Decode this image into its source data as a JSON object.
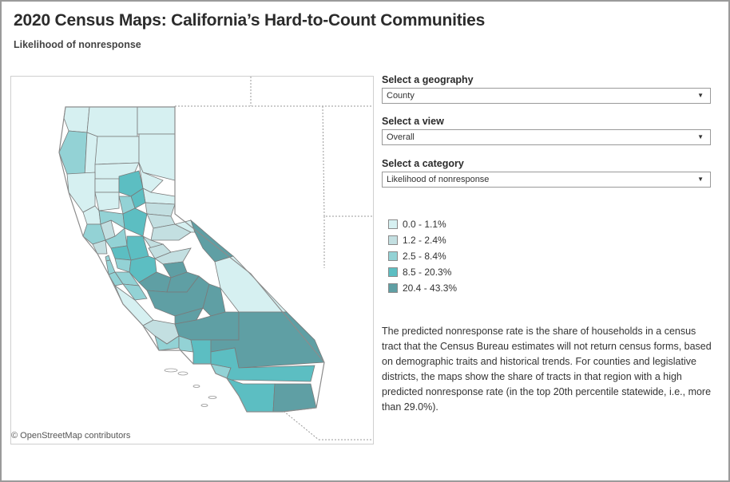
{
  "header": {
    "title": "2020 Census Maps: California’s Hard-to-Count Communities",
    "subtitle": "Likelihood of nonresponse"
  },
  "controls": [
    {
      "label": "Select a geography",
      "value": "County"
    },
    {
      "label": "Select a view",
      "value": "Overall"
    },
    {
      "label": "Select a category",
      "value": "Likelihood of nonresponse"
    }
  ],
  "legend": {
    "items": [
      {
        "label": "0.0 - 1.1%",
        "color": "#d6f0f1"
      },
      {
        "label": "1.2 - 2.4%",
        "color": "#c3dfe1"
      },
      {
        "label": "2.5 - 8.4%",
        "color": "#93d2d5"
      },
      {
        "label": "8.5 - 20.3%",
        "color": "#5cbec2"
      },
      {
        "label": "20.4 - 43.3%",
        "color": "#5f9fa4"
      }
    ]
  },
  "description": "The predicted nonresponse rate is the share of households in a census tract that the Census Bureau estimates will not return census forms, based on demographic traits and historical trends. For counties and legislative districts, the maps show the share of tracts in that region with a high predicted nonresponse rate (in the top 20th percentile statewide, i.e., more than 29.0%).",
  "map": {
    "attribution": "© OpenStreetMap contributors",
    "border_color": "#8c8c8c"
  }
}
